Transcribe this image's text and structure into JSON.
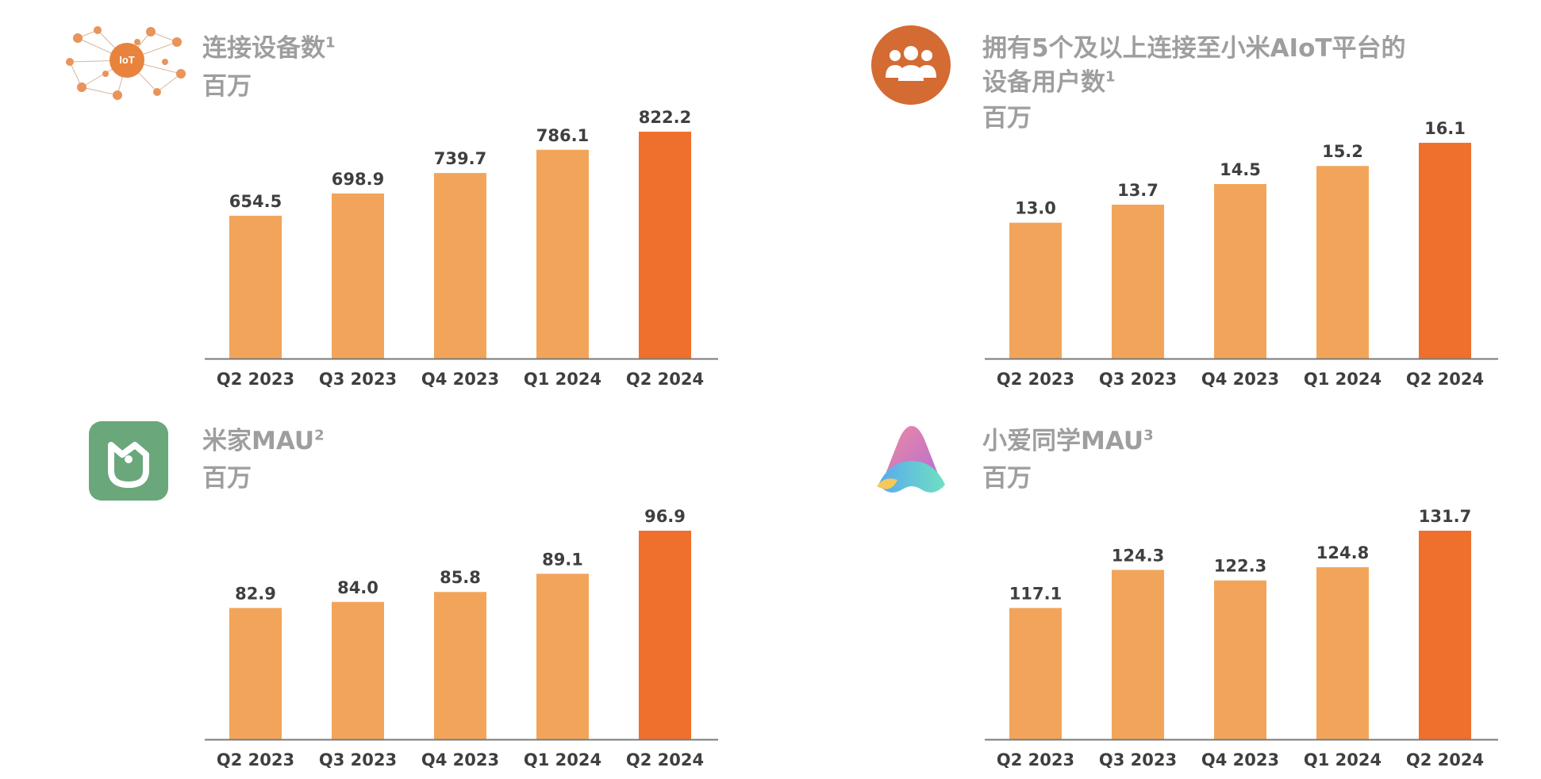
{
  "colors": {
    "bar": "#f2a55a",
    "bar_highlight": "#ee702c",
    "axis": "#7a7a7a",
    "title": "#9e9e9e",
    "label": "#3f3f3f"
  },
  "chart_data": [
    {
      "type": "bar",
      "title_lines": [
        "连接设备数"
      ],
      "title_sup": "1",
      "unit": "百万",
      "icon": "iot-ecosystem-icon",
      "categories": [
        "Q2 2023",
        "Q3 2023",
        "Q4 2023",
        "Q1 2024",
        "Q2 2024"
      ],
      "values": [
        654.5,
        698.9,
        739.7,
        786.1,
        822.2
      ],
      "value_labels": [
        "654.5",
        "698.9",
        "739.7",
        "786.1",
        "822.2"
      ],
      "highlight_index": 4
    },
    {
      "type": "bar",
      "title_lines": [
        "拥有5个及以上连接至小米AIoT平台的",
        "设备用户数"
      ],
      "title_sup": "1",
      "unit": "百万",
      "icon": "users-group-icon",
      "categories": [
        "Q2 2023",
        "Q3 2023",
        "Q4 2023",
        "Q1 2024",
        "Q2 2024"
      ],
      "values": [
        13.0,
        13.7,
        14.5,
        15.2,
        16.1
      ],
      "value_labels": [
        "13.0",
        "13.7",
        "14.5",
        "15.2",
        "16.1"
      ],
      "highlight_index": 4
    },
    {
      "type": "bar",
      "title_lines": [
        "米家MAU"
      ],
      "title_sup": "2",
      "unit": "百万",
      "icon": "mijia-app-icon",
      "categories": [
        "Q2 2023",
        "Q3 2023",
        "Q4 2023",
        "Q1 2024",
        "Q2 2024"
      ],
      "values": [
        82.9,
        84.0,
        85.8,
        89.1,
        96.9
      ],
      "value_labels": [
        "82.9",
        "84.0",
        "85.8",
        "89.1",
        "96.9"
      ],
      "highlight_index": 4
    },
    {
      "type": "bar",
      "title_lines": [
        "小爱同学MAU"
      ],
      "title_sup": "3",
      "unit": "百万",
      "icon": "xiaoai-assistant-icon",
      "categories": [
        "Q2 2023",
        "Q3 2023",
        "Q4 2023",
        "Q1 2024",
        "Q2 2024"
      ],
      "values": [
        117.1,
        124.3,
        122.3,
        124.8,
        131.7
      ],
      "value_labels": [
        "117.1",
        "124.3",
        "122.3",
        "124.8",
        "131.7"
      ],
      "highlight_index": 4
    }
  ]
}
